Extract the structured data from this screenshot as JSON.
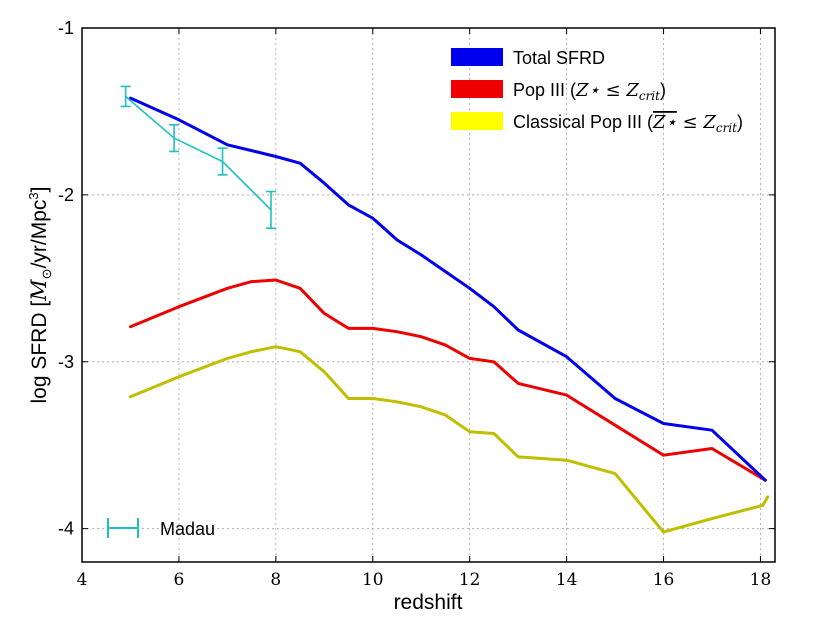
{
  "chart_data": {
    "type": "line",
    "xlabel": "redshift",
    "ylabel": "log SFRD [M⊙/yr/Mpc³]",
    "xlim": [
      4,
      18.3
    ],
    "ylim": [
      -4.2,
      -1
    ],
    "xticks": [
      4,
      6,
      8,
      10,
      12,
      14,
      16,
      18
    ],
    "xtick_labels": [
      "4",
      "6",
      "8",
      "10",
      "12",
      "14",
      "16",
      "18"
    ],
    "yticks": [
      -1,
      -2,
      -3,
      -4
    ],
    "ytick_labels": [
      "-1",
      "-2",
      "-3",
      "-4"
    ],
    "grid": true,
    "legend_position": "top-right",
    "series": [
      {
        "name": "Total SFRD",
        "color": "#0000ee",
        "x": [
          5,
          6,
          7,
          8,
          8.5,
          9,
          9.5,
          10,
          10.5,
          11,
          11.5,
          12,
          12.5,
          13,
          14,
          15,
          16,
          17,
          18.1
        ],
        "y": [
          -1.42,
          -1.55,
          -1.7,
          -1.77,
          -1.81,
          -1.93,
          -2.06,
          -2.14,
          -2.27,
          -2.36,
          -2.46,
          -2.56,
          -2.67,
          -2.81,
          -2.97,
          -3.22,
          -3.37,
          -3.41,
          -3.71
        ]
      },
      {
        "name": "Pop III",
        "color": "#ee0000",
        "x": [
          5,
          6,
          7,
          7.5,
          8,
          8.5,
          9,
          9.5,
          10,
          10.5,
          11,
          11.5,
          12,
          12.5,
          13,
          14,
          15,
          16,
          17,
          18.1
        ],
        "y": [
          -2.79,
          -2.67,
          -2.56,
          -2.52,
          -2.51,
          -2.56,
          -2.71,
          -2.8,
          -2.8,
          -2.82,
          -2.85,
          -2.9,
          -2.98,
          -3.0,
          -3.13,
          -3.2,
          -3.38,
          -3.56,
          -3.52,
          -3.71
        ]
      },
      {
        "name": "Classical Pop III",
        "color": "#bfbf00",
        "x": [
          5,
          6,
          7,
          7.5,
          8,
          8.5,
          9,
          9.5,
          10,
          10.5,
          11,
          11.5,
          12,
          12.5,
          13,
          14,
          15,
          16,
          17,
          18.05,
          18.15
        ],
        "y": [
          -3.21,
          -3.09,
          -2.98,
          -2.94,
          -2.91,
          -2.94,
          -3.06,
          -3.22,
          -3.22,
          -3.24,
          -3.27,
          -3.32,
          -3.42,
          -3.43,
          -3.57,
          -3.59,
          -3.67,
          -4.02,
          -3.94,
          -3.86,
          -3.81
        ]
      }
    ],
    "observations": {
      "name": "Madau",
      "color": "#20c0c0",
      "x": [
        4.9,
        5.9,
        6.9,
        7.9
      ],
      "y": [
        -1.41,
        -1.66,
        -1.8,
        -2.09
      ],
      "yerr": [
        0.06,
        0.08,
        0.08,
        0.11
      ],
      "xerr": 0
    },
    "legend": {
      "total": {
        "label": "Total SFRD",
        "color": "#0000ee"
      },
      "pop3": {
        "label": "Pop III (",
        "math": "Z⋆ ≤ Z",
        "sub": "crit",
        "close": ")",
        "color": "#ee0000"
      },
      "classical": {
        "label": "Classical Pop III (",
        "math_over": "Z⋆",
        "math": " ≤ Z",
        "sub": "crit",
        "close": ")",
        "color": "#ffff00"
      },
      "madau": {
        "label": "Madau",
        "color": "#20c0c0"
      }
    }
  }
}
